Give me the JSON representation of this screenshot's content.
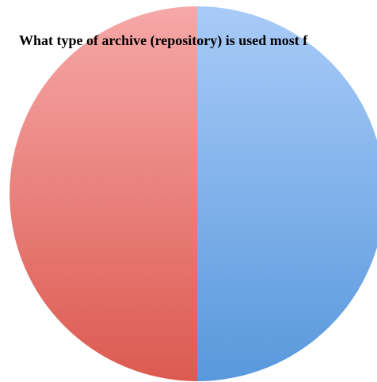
{
  "chart_data": {
    "type": "pie",
    "title": "What type of archive (repository) is used most f",
    "slices": [
      {
        "value": 50,
        "color_top": "#a9cbf8",
        "color_bottom": "#5898dc"
      },
      {
        "value": 50,
        "color_top": "#f6a8a8",
        "color_bottom": "#dc5a50"
      }
    ]
  }
}
